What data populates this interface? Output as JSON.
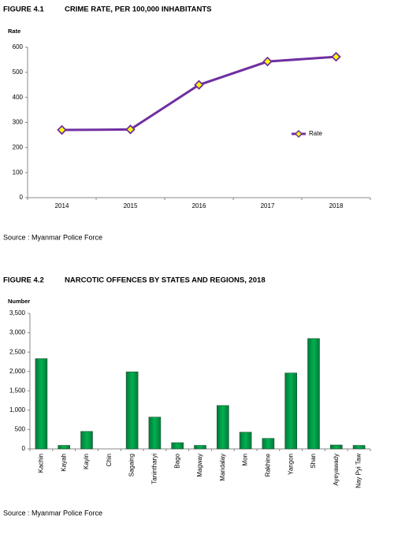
{
  "chart_data": [
    {
      "type": "line",
      "figure_label": "FIGURE 4.1",
      "title": "CRIME RATE, PER 100,000 INHABITANTS",
      "y_label": "Rate",
      "categories": [
        "2014",
        "2015",
        "2016",
        "2017",
        "2018"
      ],
      "series": [
        {
          "name": "Rate",
          "color": "#7030a0",
          "marker_color": "#ffff00",
          "values": [
            270,
            272,
            450,
            543,
            562
          ]
        }
      ],
      "ylim": [
        0,
        600
      ],
      "yticks": [
        0,
        100,
        200,
        300,
        400,
        500,
        600
      ],
      "grid": false,
      "legend": "right",
      "source": "Source : Myanmar Police Force"
    },
    {
      "type": "bar",
      "figure_label": "FIGURE 4.2",
      "title": "NARCOTIC OFFENCES BY STATES AND REGIONS, 2018",
      "y_label": "Number",
      "categories": [
        "Kachin",
        "Kayah",
        "Kayin",
        "Chin",
        "Sagaing",
        "Tanintharyi",
        "Bago",
        "Magway",
        "Mandalay",
        "Mon",
        "Rakhine",
        "Yangon",
        "Shan",
        "Ayeyawady",
        "Nay Pyi Taw"
      ],
      "values": [
        2330,
        90,
        450,
        0,
        1990,
        820,
        160,
        90,
        1120,
        430,
        270,
        1960,
        2850,
        100,
        90
      ],
      "color": "#00b050",
      "ylim": [
        0,
        3500
      ],
      "yticks": [
        0,
        500,
        {
          "value": 1000,
          "label": "1,000"
        },
        {
          "value": 1500,
          "label": "1,500"
        },
        {
          "value": 2000,
          "label": "2,000"
        },
        {
          "value": 2500,
          "label": "2,500"
        },
        {
          "value": 3000,
          "label": "3,000"
        },
        {
          "value": 3500,
          "label": "3,500"
        }
      ],
      "grid": false,
      "source": "Source : Myanmar Police Force"
    }
  ]
}
